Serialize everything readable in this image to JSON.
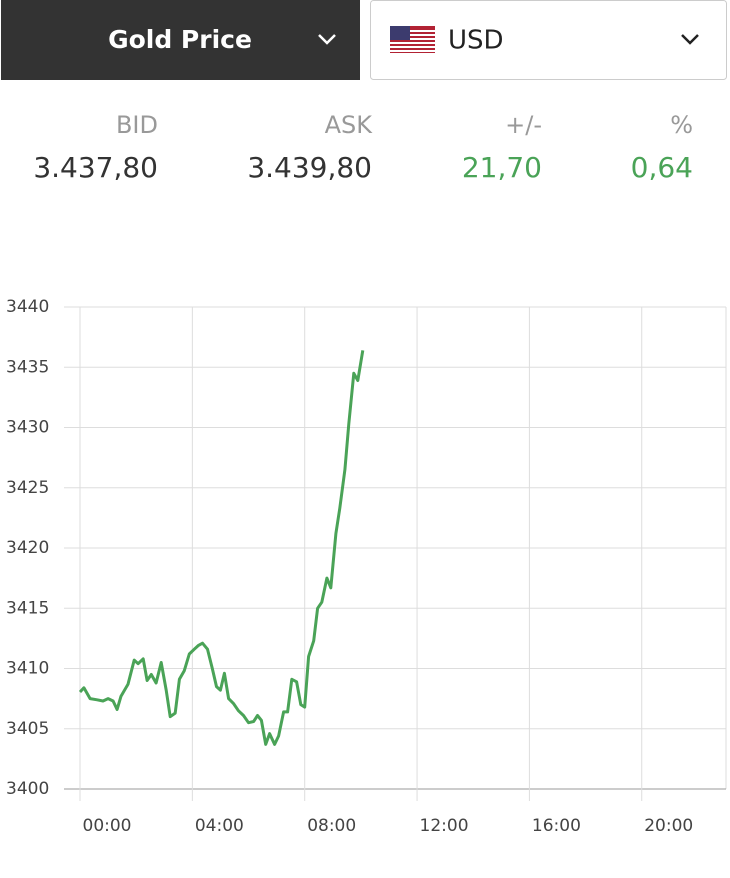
{
  "header": {
    "title": "Gold Price",
    "currency": "USD"
  },
  "quote": {
    "labels": [
      "BID",
      "ASK",
      "+/-",
      "%"
    ],
    "values": [
      "3.437,80",
      "3.439,80",
      "21,70",
      "0,64"
    ]
  },
  "chart_data": {
    "type": "line",
    "x": [
      0,
      0.14,
      0.36,
      0.61,
      0.82,
      1.0,
      1.18,
      1.32,
      1.46,
      1.71,
      1.93,
      2.07,
      2.25,
      2.39,
      2.54,
      2.71,
      2.89,
      3.07,
      3.21,
      3.39,
      3.54,
      3.71,
      3.89,
      4.07,
      4.21,
      4.36,
      4.54,
      4.71,
      4.86,
      5.0,
      5.14,
      5.29,
      5.46,
      5.64,
      5.82,
      6.0,
      6.18,
      6.32,
      6.46,
      6.61,
      6.75,
      6.93,
      7.07,
      7.25,
      7.39,
      7.54,
      7.71,
      7.86,
      8.0,
      8.14,
      8.32,
      8.46,
      8.61,
      8.79,
      8.93,
      9.11,
      9.25,
      9.43,
      9.57,
      9.75,
      9.89,
      10.07
    ],
    "series": [
      {
        "color": "#4aa357",
        "values": [
          3408.05,
          3408.4,
          3407.5,
          3407.4,
          3407.3,
          3407.5,
          3407.3,
          3406.6,
          3407.7,
          3408.7,
          3410.7,
          3410.4,
          3410.8,
          3409.0,
          3409.5,
          3408.8,
          3410.5,
          3408.2,
          3406.0,
          3406.3,
          3409.1,
          3409.8,
          3411.2,
          3411.6,
          3411.9,
          3412.1,
          3411.6,
          3410.0,
          3408.5,
          3408.2,
          3409.6,
          3407.5,
          3407.1,
          3406.5,
          3406.1,
          3405.5,
          3405.6,
          3406.1,
          3405.7,
          3403.7,
          3404.6,
          3403.7,
          3404.4,
          3406.4,
          3406.4,
          3409.1,
          3408.9,
          3407.0,
          3406.8,
          3411.0,
          3412.3,
          3415.0,
          3415.5,
          3417.5,
          3416.7,
          3421.2,
          3423.3,
          3426.5,
          3430.3,
          3434.5,
          3433.9,
          3436.4
        ]
      }
    ],
    "xlim": [
      0,
      23
    ],
    "xticks": [
      {
        "value": 0,
        "label": "00:00"
      },
      {
        "value": 4,
        "label": "04:00"
      },
      {
        "value": 8,
        "label": "08:00"
      },
      {
        "value": 12,
        "label": "12:00"
      },
      {
        "value": 16,
        "label": "16:00"
      },
      {
        "value": 20,
        "label": "20:00"
      }
    ],
    "ylim": [
      3400,
      3440
    ],
    "yticks": [
      3400,
      3405,
      3410,
      3415,
      3420,
      3425,
      3430,
      3435,
      3440
    ],
    "grid": true
  }
}
